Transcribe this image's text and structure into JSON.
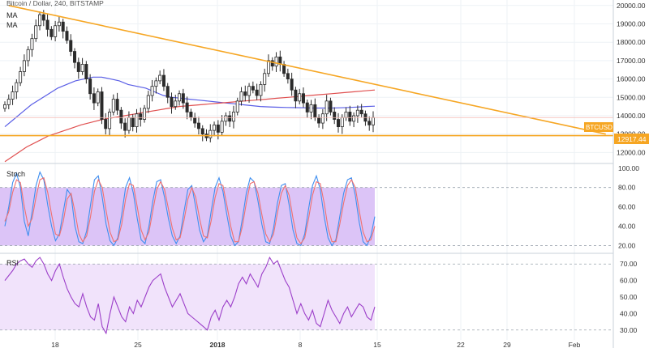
{
  "header": {
    "title": "Bitcoin / Dollar, 240, BITSTAMP",
    "ma_label_1": "MA",
    "ma_label_2": "MA"
  },
  "symbol_badge": "BTCUSD",
  "support_badge": "12917.44",
  "panels": {
    "stoch": {
      "label": "Stoch"
    },
    "rsi": {
      "label": "RSI"
    }
  },
  "colors": {
    "candle": "#2b2b2b",
    "trendline": "#f6a623",
    "ma_fast": "#5a5ee6",
    "ma_slow": "#e05050",
    "stoch_k": "#3f8ff0",
    "stoch_d": "#f07070",
    "stoch_band": "#dcc4f7",
    "rsi_line": "#9c3fc9",
    "rsi_band": "#f1e3fb",
    "badge_bg": "#f6a623",
    "grid": "#eef2f6"
  },
  "chart_data": [
    {
      "type": "candlestick",
      "panel": "price",
      "title": "Bitcoin / Dollar, 240, BITSTAMP",
      "ylim": [
        11400,
        20300
      ],
      "y_ticks": [
        "12000.00",
        "13000.00",
        "14000.00",
        "15000.00",
        "16000.00",
        "17000.00",
        "18000.00",
        "19000.00",
        "20000.00"
      ],
      "x_ticks": [
        "18",
        "25",
        "2018",
        "8",
        "15",
        "22",
        "29",
        "Feb"
      ],
      "close": [
        14600,
        14900,
        15300,
        15800,
        16400,
        17000,
        17600,
        18200,
        18900,
        19500,
        19200,
        18700,
        18300,
        18900,
        19100,
        18600,
        18100,
        17500,
        16900,
        16400,
        16800,
        16000,
        15200,
        14700,
        15300,
        13800,
        13300,
        14200,
        14900,
        14300,
        13600,
        13200,
        13900,
        13400,
        14100,
        13800,
        14400,
        15100,
        15600,
        15900,
        16200,
        15600,
        15000,
        14500,
        14800,
        15200,
        14700,
        14200,
        13900,
        13600,
        13300,
        13000,
        12800,
        13200,
        13500,
        13100,
        13700,
        14000,
        13700,
        14200,
        14800,
        15300,
        15100,
        15600,
        15400,
        15100,
        15700,
        16300,
        17000,
        16700,
        17200,
        16800,
        16300,
        16000,
        15400,
        14800,
        15200,
        14700,
        14200,
        14600,
        13900,
        13600,
        14100,
        14800,
        14200,
        13800,
        13400,
        13900,
        14200,
        13700,
        14000,
        14300,
        14100,
        13700,
        13500,
        13900
      ],
      "series": [
        {
          "name": "MA",
          "kind": "fast",
          "values": [
            13400,
            13800,
            14200,
            14600,
            14900,
            15200,
            15500,
            15700,
            15900,
            16000,
            16100,
            16100,
            16000,
            15900,
            15700,
            15600,
            15500,
            15300,
            15100,
            15000,
            14950,
            14900,
            14850,
            14800,
            14750,
            14700,
            14650,
            14600,
            14550,
            14500,
            14480,
            14460,
            14450,
            14440,
            14430,
            14420,
            14420,
            14420,
            14430,
            14450,
            14470,
            14500,
            14520
          ]
        },
        {
          "name": "MA",
          "kind": "slow",
          "values": [
            11500,
            11900,
            12300,
            12600,
            12900,
            13100,
            13300,
            13500,
            13650,
            13800,
            13900,
            14000,
            14100,
            14200,
            14300,
            14400,
            14500,
            14550,
            14600,
            14650,
            14700,
            14750,
            14800,
            14850,
            14900,
            14950,
            15000,
            15050,
            15100,
            15150,
            15200,
            15250,
            15300,
            15350,
            15400
          ]
        }
      ],
      "trendline": {
        "from": {
          "bar": 1,
          "value": 20000
        },
        "to": {
          "bar": 155,
          "value": 13000
        }
      },
      "support_level": 12917.44
    },
    {
      "type": "line",
      "panel": "stoch",
      "title": "Stoch",
      "ylim": [
        12,
        104
      ],
      "y_ticks": [
        "20.00",
        "40.00",
        "60.00",
        "80.00",
        "100.00"
      ],
      "band": [
        20,
        80
      ],
      "series": [
        {
          "name": "",
          "kind": "k",
          "values": [
            40,
            60,
            85,
            95,
            80,
            45,
            30,
            55,
            82,
            96,
            88,
            62,
            40,
            25,
            32,
            55,
            78,
            72,
            40,
            24,
            22,
            35,
            62,
            88,
            92,
            70,
            42,
            25,
            20,
            28,
            52,
            80,
            90,
            74,
            48,
            26,
            22,
            40,
            66,
            86,
            88,
            70,
            48,
            30,
            22,
            30,
            55,
            78,
            82,
            60,
            36,
            24,
            30,
            56,
            80,
            90,
            76,
            52,
            30,
            20,
            24,
            48,
            74,
            90,
            86,
            66,
            42,
            24,
            22,
            38,
            64,
            82,
            84,
            62,
            36,
            22,
            20,
            32,
            58,
            82,
            92,
            78,
            50,
            28,
            20,
            26,
            50,
            74,
            88,
            90,
            72,
            44,
            24,
            20,
            30,
            50
          ]
        },
        {
          "name": "",
          "kind": "d",
          "values": [
            45,
            55,
            75,
            88,
            85,
            60,
            40,
            48,
            70,
            88,
            90,
            75,
            52,
            32,
            30,
            45,
            68,
            74,
            55,
            32,
            24,
            30,
            50,
            76,
            88,
            80,
            56,
            34,
            24,
            26,
            42,
            68,
            84,
            82,
            60,
            36,
            26,
            34,
            56,
            78,
            86,
            78,
            58,
            38,
            26,
            28,
            46,
            68,
            80,
            70,
            48,
            30,
            28,
            46,
            70,
            84,
            82,
            62,
            40,
            24,
            24,
            40,
            64,
            84,
            86,
            74,
            52,
            32,
            24,
            32,
            54,
            74,
            82,
            72,
            48,
            28,
            22,
            28,
            48,
            72,
            86,
            84,
            64,
            38,
            24,
            24,
            42,
            64,
            82,
            88,
            80,
            56,
            34,
            24,
            26,
            40
          ]
        }
      ]
    },
    {
      "type": "line",
      "panel": "rsi",
      "title": "RSI",
      "ylim": [
        24,
        76
      ],
      "y_ticks": [
        "30.00",
        "40.00",
        "50.00",
        "60.00",
        "70.00"
      ],
      "band": [
        30,
        70
      ],
      "series": [
        {
          "name": "RSI",
          "values": [
            60,
            63,
            66,
            70,
            72,
            73,
            70,
            68,
            72,
            74,
            70,
            64,
            60,
            66,
            70,
            62,
            55,
            50,
            46,
            44,
            52,
            44,
            38,
            36,
            46,
            32,
            28,
            40,
            50,
            44,
            38,
            35,
            44,
            40,
            48,
            44,
            50,
            56,
            60,
            62,
            64,
            56,
            50,
            44,
            48,
            52,
            46,
            40,
            38,
            36,
            34,
            32,
            30,
            38,
            42,
            36,
            44,
            48,
            44,
            50,
            58,
            62,
            58,
            64,
            60,
            56,
            64,
            68,
            74,
            70,
            72,
            66,
            60,
            56,
            48,
            40,
            46,
            40,
            36,
            42,
            34,
            32,
            40,
            48,
            42,
            38,
            34,
            40,
            44,
            38,
            42,
            46,
            44,
            38,
            36,
            44
          ]
        }
      ]
    }
  ]
}
